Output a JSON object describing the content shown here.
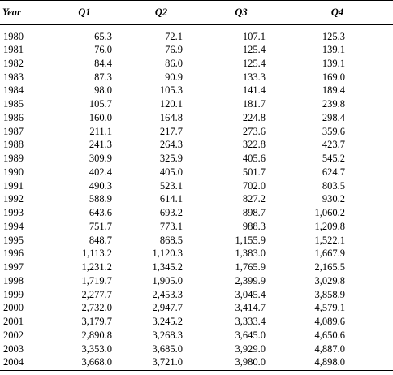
{
  "table": {
    "headers": [
      "Year",
      "Q1",
      "Q2",
      "Q3",
      "Q4"
    ],
    "rows": [
      [
        "1980",
        "65.3",
        "72.1",
        "107.1",
        "125.3"
      ],
      [
        "1981",
        "76.0",
        "76.9",
        "125.4",
        "139.1"
      ],
      [
        "1982",
        "84.4",
        "86.0",
        "125.4",
        "139.1"
      ],
      [
        "1983",
        "87.3",
        "90.9",
        "133.3",
        "169.0"
      ],
      [
        "1984",
        "98.0",
        "105.3",
        "141.4",
        "189.4"
      ],
      [
        "1985",
        "105.7",
        "120.1",
        "181.7",
        "239.8"
      ],
      [
        "1986",
        "160.0",
        "164.8",
        "224.8",
        "298.4"
      ],
      [
        "1987",
        "211.1",
        "217.7",
        "273.6",
        "359.6"
      ],
      [
        "1988",
        "241.3",
        "264.3",
        "322.8",
        "423.7"
      ],
      [
        "1989",
        "309.9",
        "325.9",
        "405.6",
        "545.2"
      ],
      [
        "1990",
        "402.4",
        "405.0",
        "501.7",
        "624.7"
      ],
      [
        "1991",
        "490.3",
        "523.1",
        "702.0",
        "803.5"
      ],
      [
        "1992",
        "588.9",
        "614.1",
        "827.2",
        "930.2"
      ],
      [
        "1993",
        "643.6",
        "693.2",
        "898.7",
        "1,060.2"
      ],
      [
        "1994",
        "751.7",
        "773.1",
        "988.3",
        "1,209.8"
      ],
      [
        "1995",
        "848.7",
        "868.5",
        "1,155.9",
        "1,522.1"
      ],
      [
        "1996",
        "1,113.2",
        "1,120.3",
        "1,383.0",
        "1,667.9"
      ],
      [
        "1997",
        "1,231.2",
        "1,345.2",
        "1,765.9",
        "2,165.5"
      ],
      [
        "1998",
        "1,719.7",
        "1,905.0",
        "2,399.9",
        "3,029.8"
      ],
      [
        "1999",
        "2,277.7",
        "2,453.3",
        "3,045.4",
        "3,858.9"
      ],
      [
        "2000",
        "2,732.0",
        "2,947.7",
        "3,414.7",
        "4,579.1"
      ],
      [
        "2001",
        "3,179.7",
        "3,245.2",
        "3,333.4",
        "4,089.6"
      ],
      [
        "2002",
        "2,890.8",
        "3,268.3",
        "3,645.0",
        "4,650.6"
      ],
      [
        "2003",
        "3,353.0",
        "3,685.0",
        "3,929.0",
        "4,887.0"
      ],
      [
        "2004",
        "3,668.0",
        "3,721.0",
        "3,980.0",
        "4,898.0"
      ]
    ]
  }
}
